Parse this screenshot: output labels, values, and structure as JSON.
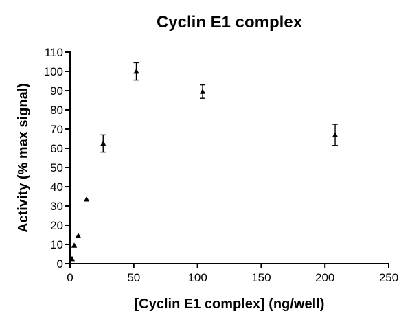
{
  "chart_data": {
    "type": "scatter",
    "title": "Cyclin E1 complex",
    "xlabel": "[Cyclin E1 complex] (ng/well)",
    "ylabel": "Activity (% max signal)",
    "xlim": [
      0,
      250
    ],
    "ylim": [
      0,
      110
    ],
    "xticks": [
      0,
      50,
      100,
      150,
      200,
      250
    ],
    "yticks": [
      0,
      10,
      20,
      30,
      40,
      50,
      60,
      70,
      80,
      90,
      100,
      110
    ],
    "grid": false,
    "marker": "triangle",
    "color": "#000000",
    "series": [
      {
        "points": [
          {
            "x": 1.6,
            "y": 2.5,
            "err": 0
          },
          {
            "x": 3.25,
            "y": 9.5,
            "err": 0
          },
          {
            "x": 6.5,
            "y": 14.5,
            "err": 0
          },
          {
            "x": 13,
            "y": 33.5,
            "err": 0
          },
          {
            "x": 26,
            "y": 62.5,
            "err": 4.5
          },
          {
            "x": 52,
            "y": 100,
            "err": 4.5
          },
          {
            "x": 104,
            "y": 89.5,
            "err": 3.5
          },
          {
            "x": 208,
            "y": 67,
            "err": 5.5
          }
        ]
      }
    ]
  }
}
